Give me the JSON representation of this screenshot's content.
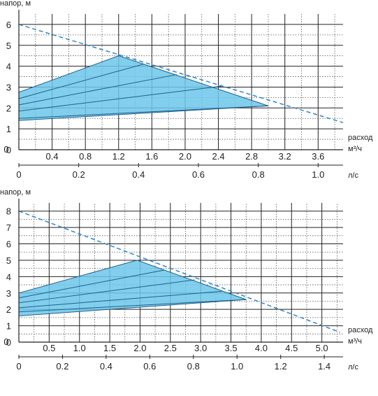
{
  "chart_data": [
    {
      "type": "area",
      "ylabel": "напор, м",
      "xlabel": "расход",
      "x_unit": "м³/ч",
      "x2_unit": "л/с",
      "xlim": [
        0,
        3.9
      ],
      "ylim": [
        0,
        6.5
      ],
      "yticks": [
        "0",
        "1",
        "2",
        "3",
        "4",
        "5",
        "6"
      ],
      "xticks": [
        "0.4",
        "0.8",
        "1.2",
        "1.6",
        "2.0",
        "2.4",
        "2.8",
        "3.2",
        "3.6"
      ],
      "x2_lim": [
        0,
        1.0833
      ],
      "x2ticks": [
        "0",
        "0.2",
        "0.4",
        "0.6",
        "0.8",
        "1.0"
      ],
      "x_origin_label": "0",
      "grid": true,
      "max_curve": [
        [
          0,
          6.0
        ],
        [
          3.9,
          1.3
        ]
      ],
      "region": [
        [
          0,
          2.75
        ],
        [
          1.2,
          4.5
        ],
        [
          3.0,
          2.1
        ],
        [
          0,
          1.4
        ]
      ],
      "speed_lines": [
        [
          [
            0,
            2.45
          ],
          [
            1.5,
            4.1
          ]
        ],
        [
          [
            0,
            2.15
          ],
          [
            1.9,
            3.6
          ]
        ],
        [
          [
            0,
            1.85
          ],
          [
            2.45,
            3.05
          ]
        ],
        [
          [
            0,
            1.5
          ],
          [
            3.0,
            2.1
          ]
        ]
      ],
      "color": "#6cc7ea",
      "line_color": "#1e5f8c"
    },
    {
      "type": "area",
      "ylabel": "напор, м",
      "xlabel": "расход",
      "x_unit": "м³/ч",
      "x2_unit": "л/с",
      "xlim": [
        0,
        5.35
      ],
      "ylim": [
        0,
        8.5
      ],
      "yticks": [
        "0",
        "1",
        "2",
        "3",
        "4",
        "5",
        "6",
        "7",
        "8"
      ],
      "xticks": [
        "0.5",
        "1.0",
        "1.5",
        "2.0",
        "2.5",
        "3.0",
        "3.5",
        "4.0",
        "4.5",
        "5.0"
      ],
      "x2_lim": [
        0,
        1.4861
      ],
      "x2ticks": [
        "0",
        "0.2",
        "0.4",
        "0.6",
        "0.8",
        "1.0",
        "1.2",
        "1.4"
      ],
      "x_origin_label": "0",
      "grid": true,
      "max_curve": [
        [
          0,
          8.0
        ],
        [
          5.3,
          0.6
        ]
      ],
      "region": [
        [
          0,
          3.0
        ],
        [
          1.95,
          5.0
        ],
        [
          3.75,
          2.6
        ],
        [
          0,
          1.6
        ]
      ],
      "speed_lines": [
        [
          [
            0,
            2.7
          ],
          [
            2.4,
            4.4
          ]
        ],
        [
          [
            0,
            2.4
          ],
          [
            2.9,
            3.8
          ]
        ],
        [
          [
            0,
            2.1
          ],
          [
            3.35,
            3.1
          ]
        ],
        [
          [
            0,
            1.85
          ],
          [
            3.75,
            2.6
          ]
        ]
      ],
      "color": "#6cc7ea",
      "line_color": "#1e5f8c"
    }
  ]
}
